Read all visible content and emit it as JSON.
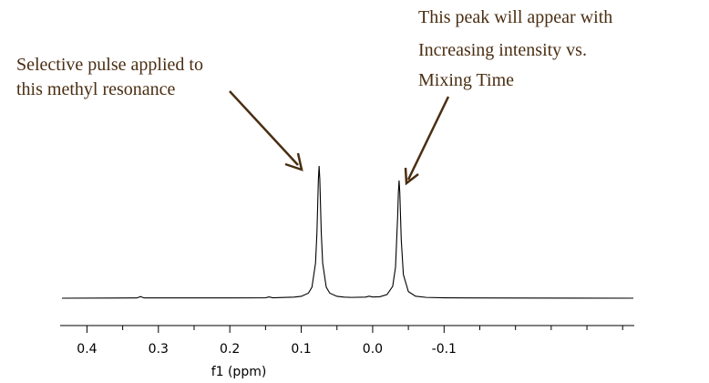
{
  "chart_data": {
    "type": "line",
    "xlabel": "f1 (ppm)",
    "x_reversed": true,
    "xlim": [
      0.435,
      -0.365
    ],
    "xticks": [
      0.4,
      0.3,
      0.2,
      0.1,
      {
        "value": 0,
        "label": "0.0"
      },
      -0.1
    ],
    "xminorticks": [
      0.35,
      0.25,
      0.15,
      0.05,
      -0.05,
      -0.15,
      -0.2,
      -0.25,
      -0.3,
      -0.35
    ],
    "annotations": [
      {
        "lines": [
          "Selective pulse applied to",
          "this methyl resonance"
        ]
      },
      {
        "lines": [
          "This peak will appear with",
          "Increasing intensity vs.",
          "Mixing Time"
        ]
      }
    ],
    "series": [
      {
        "color": "#000000",
        "x": [
          0.435,
          0.33,
          0.325,
          0.32,
          0.2,
          0.15,
          0.145,
          0.14,
          0.11,
          0.1,
          0.09,
          0.085,
          0.08,
          0.078,
          0.076,
          0.075,
          0.074,
          0.072,
          0.07,
          0.065,
          0.06,
          0.05,
          0.04,
          0.03,
          0.01,
          0.005,
          0.0,
          -0.01,
          -0.02,
          -0.028,
          -0.032,
          -0.035,
          -0.036,
          -0.037,
          -0.038,
          -0.04,
          -0.043,
          -0.05,
          -0.06,
          -0.075,
          -0.1,
          -0.2,
          -0.365
        ],
        "values": [
          0,
          0.002,
          0.012,
          0.002,
          0.002,
          0.003,
          0.01,
          0.003,
          0.008,
          0.014,
          0.038,
          0.083,
          0.265,
          0.5,
          0.9,
          1.0,
          0.9,
          0.5,
          0.265,
          0.083,
          0.038,
          0.014,
          0.008,
          0.006,
          0.008,
          0.015,
          0.009,
          0.011,
          0.027,
          0.089,
          0.235,
          0.62,
          0.8,
          0.89,
          0.8,
          0.445,
          0.178,
          0.05,
          0.015,
          0.006,
          0.003,
          0.001,
          0
        ]
      }
    ]
  }
}
